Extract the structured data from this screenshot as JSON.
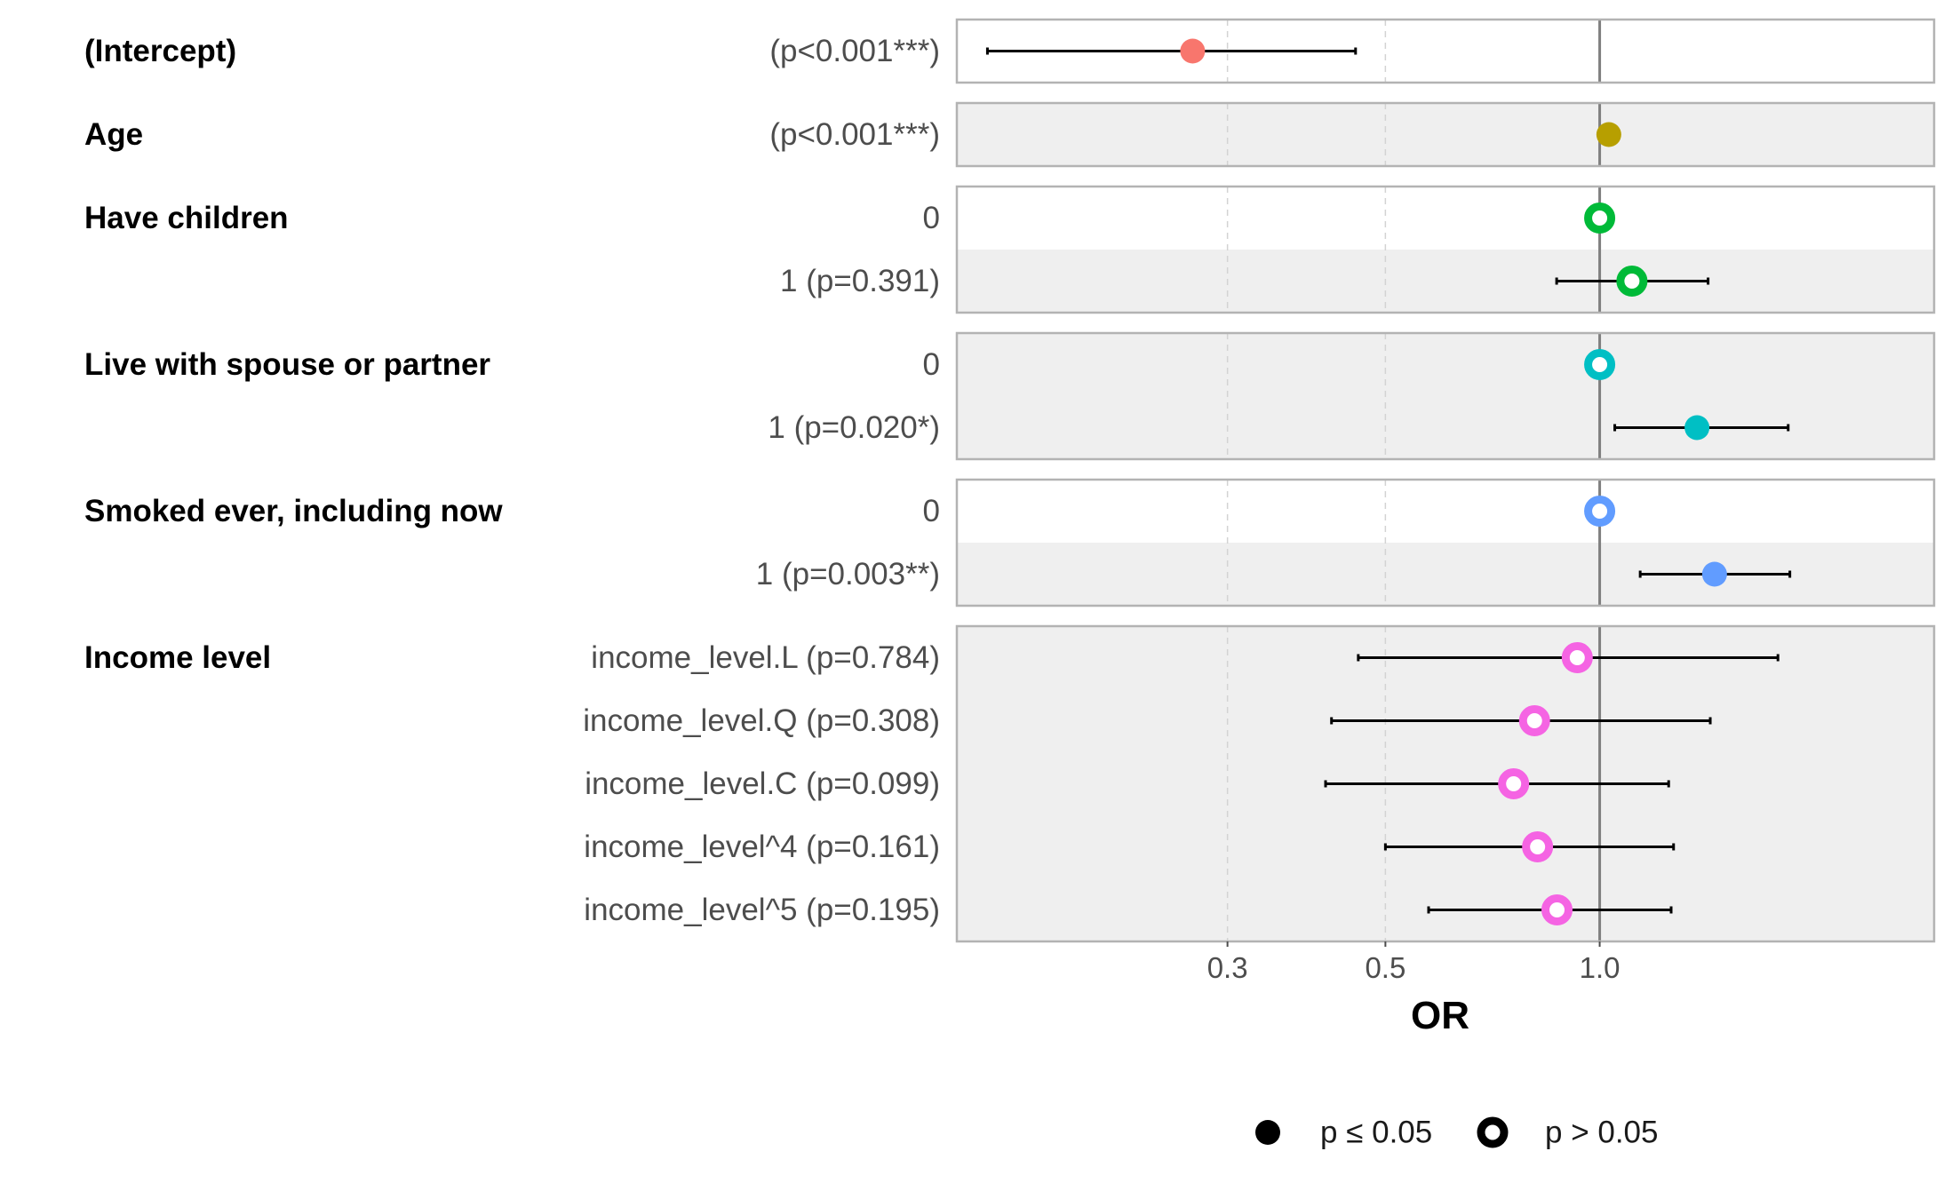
{
  "chart_data": {
    "type": "forest",
    "xlabel": "OR",
    "x_scale": "log",
    "xlim": [
      0.125,
      2.95
    ],
    "x_ticks": [
      {
        "value": 0.3,
        "label": "0.3"
      },
      {
        "value": 0.5,
        "label": "0.5"
      },
      {
        "value": 1.0,
        "label": "1.0"
      }
    ],
    "reference_line": 1.0,
    "groups": [
      {
        "label": "(Intercept)",
        "color": "#F8766D",
        "rows": [
          {
            "label": "(p<0.001***)",
            "or": 0.268,
            "lo": 0.138,
            "hi": 0.454,
            "significant": true
          }
        ]
      },
      {
        "label": "Age",
        "color": "#B79F00",
        "rows": [
          {
            "label": "(p<0.001***)",
            "or": 1.03,
            "lo": null,
            "hi": null,
            "significant": true
          }
        ]
      },
      {
        "label": "Have children",
        "color": "#00BA38",
        "rows": [
          {
            "label": "0",
            "or": 1.0,
            "lo": null,
            "hi": null,
            "significant": false
          },
          {
            "label": "1 (p=0.391)",
            "or": 1.11,
            "lo": 0.87,
            "hi": 1.42,
            "significant": false
          }
        ]
      },
      {
        "label": "Live with spouse or partner",
        "color": "#00BFC4",
        "rows": [
          {
            "label": "0",
            "or": 1.0,
            "lo": null,
            "hi": null,
            "significant": false
          },
          {
            "label": "1 (p=0.020*)",
            "or": 1.37,
            "lo": 1.05,
            "hi": 1.84,
            "significant": true
          }
        ]
      },
      {
        "label": "Smoked ever, including now",
        "color": "#619CFF",
        "rows": [
          {
            "label": "0",
            "or": 1.0,
            "lo": null,
            "hi": null,
            "significant": false
          },
          {
            "label": "1 (p=0.003**)",
            "or": 1.45,
            "lo": 1.14,
            "hi": 1.85,
            "significant": true
          }
        ]
      },
      {
        "label": "Income level",
        "color": "#F564E3",
        "rows": [
          {
            "label": "income_level.L (p=0.784)",
            "or": 0.93,
            "lo": 0.458,
            "hi": 1.78,
            "significant": false
          },
          {
            "label": "income_level.Q (p=0.308)",
            "or": 0.81,
            "lo": 0.42,
            "hi": 1.43,
            "significant": false
          },
          {
            "label": "income_level.C (p=0.099)",
            "or": 0.757,
            "lo": 0.412,
            "hi": 1.25,
            "significant": false
          },
          {
            "label": "income_level^4 (p=0.161)",
            "or": 0.818,
            "lo": 0.5,
            "hi": 1.27,
            "significant": false
          },
          {
            "label": "income_level^5 (p=0.195)",
            "or": 0.871,
            "lo": 0.575,
            "hi": 1.26,
            "significant": false
          }
        ]
      }
    ],
    "legend": {
      "position": "bottom",
      "items": [
        {
          "label": "p ≤ 0.05",
          "filled": true
        },
        {
          "label": "p > 0.05",
          "filled": false
        }
      ]
    }
  }
}
